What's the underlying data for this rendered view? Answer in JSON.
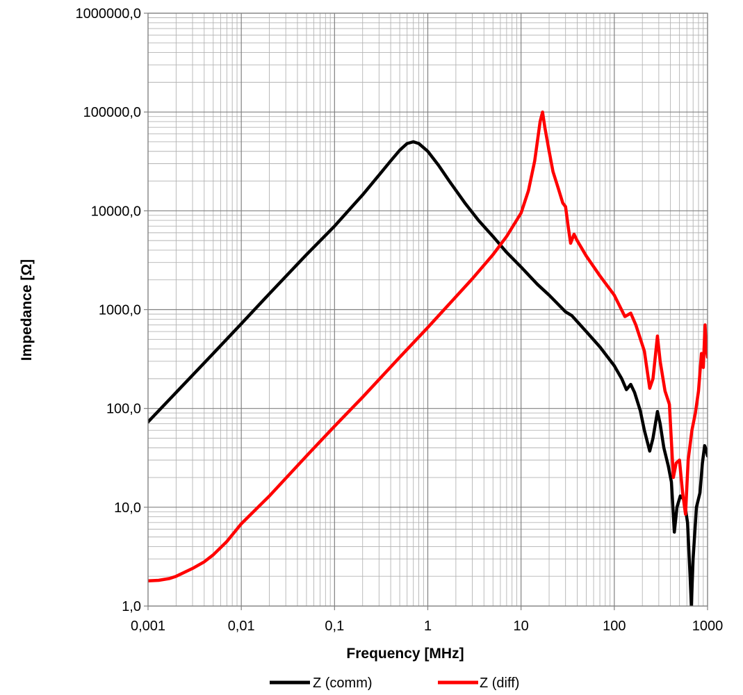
{
  "chart_data": {
    "type": "line",
    "xlabel": "Frequency  [MHz]",
    "ylabel": "Impedance [Ω]",
    "xscale": "log",
    "yscale": "log",
    "xlim": [
      0.001,
      1000
    ],
    "ylim": [
      1,
      1000000
    ],
    "grid": true,
    "legend_position": "bottom",
    "x_tick_labels": [
      "0,001",
      "0,01",
      "0,1",
      "1",
      "10",
      "100",
      "1000"
    ],
    "y_tick_labels": [
      "1,0",
      "10,0",
      "100,0",
      "1000,0",
      "10000,0",
      "100000,0",
      "1000000,0"
    ],
    "series": [
      {
        "name": "Z  (comm)",
        "color": "#000000",
        "points": [
          [
            0.001,
            73
          ],
          [
            0.002,
            145
          ],
          [
            0.005,
            360
          ],
          [
            0.01,
            720
          ],
          [
            0.02,
            1450
          ],
          [
            0.05,
            3600
          ],
          [
            0.1,
            7000
          ],
          [
            0.2,
            14500
          ],
          [
            0.3,
            23000
          ],
          [
            0.4,
            32000
          ],
          [
            0.5,
            41000
          ],
          [
            0.6,
            48000
          ],
          [
            0.7,
            50000
          ],
          [
            0.8,
            48000
          ],
          [
            1.0,
            40000
          ],
          [
            1.3,
            29000
          ],
          [
            1.7,
            20000
          ],
          [
            2.5,
            12000
          ],
          [
            3.5,
            8000
          ],
          [
            5,
            5500
          ],
          [
            7,
            3800
          ],
          [
            10,
            2700
          ],
          [
            15,
            1800
          ],
          [
            20,
            1400
          ],
          [
            30,
            950
          ],
          [
            35,
            870
          ],
          [
            50,
            600
          ],
          [
            70,
            420
          ],
          [
            100,
            270
          ],
          [
            120,
            200
          ],
          [
            135,
            155
          ],
          [
            150,
            175
          ],
          [
            165,
            145
          ],
          [
            190,
            95
          ],
          [
            210,
            60
          ],
          [
            240,
            37
          ],
          [
            260,
            50
          ],
          [
            290,
            93
          ],
          [
            310,
            70
          ],
          [
            340,
            40
          ],
          [
            380,
            26
          ],
          [
            410,
            18
          ],
          [
            440,
            5.6
          ],
          [
            470,
            10
          ],
          [
            510,
            13
          ],
          [
            560,
            12
          ],
          [
            610,
            7
          ],
          [
            650,
            2
          ],
          [
            670,
            1
          ],
          [
            700,
            3
          ],
          [
            760,
            10
          ],
          [
            830,
            14
          ],
          [
            880,
            28
          ],
          [
            930,
            42
          ],
          [
            970,
            38
          ],
          [
            1000,
            33
          ]
        ]
      },
      {
        "name": "Z (diff)",
        "color": "#ff0000",
        "points": [
          [
            0.001,
            1.8
          ],
          [
            0.0013,
            1.82
          ],
          [
            0.0017,
            1.9
          ],
          [
            0.002,
            2.0
          ],
          [
            0.003,
            2.4
          ],
          [
            0.004,
            2.8
          ],
          [
            0.005,
            3.3
          ],
          [
            0.007,
            4.5
          ],
          [
            0.01,
            6.8
          ],
          [
            0.02,
            13
          ],
          [
            0.05,
            33
          ],
          [
            0.1,
            66
          ],
          [
            0.2,
            130
          ],
          [
            0.5,
            330
          ],
          [
            1,
            660
          ],
          [
            2,
            1350
          ],
          [
            3,
            2050
          ],
          [
            5,
            3600
          ],
          [
            7,
            5500
          ],
          [
            10,
            9500
          ],
          [
            12,
            16000
          ],
          [
            14,
            32000
          ],
          [
            16,
            80000
          ],
          [
            17,
            100000
          ],
          [
            18,
            70000
          ],
          [
            20,
            40000
          ],
          [
            22,
            25000
          ],
          [
            25,
            17000
          ],
          [
            28,
            12000
          ],
          [
            30,
            11000
          ],
          [
            32,
            7000
          ],
          [
            34,
            4700
          ],
          [
            37,
            5800
          ],
          [
            40,
            5000
          ],
          [
            50,
            3500
          ],
          [
            70,
            2200
          ],
          [
            100,
            1400
          ],
          [
            130,
            850
          ],
          [
            150,
            920
          ],
          [
            170,
            700
          ],
          [
            210,
            380
          ],
          [
            240,
            160
          ],
          [
            260,
            200
          ],
          [
            290,
            540
          ],
          [
            310,
            300
          ],
          [
            350,
            150
          ],
          [
            390,
            110
          ],
          [
            430,
            20
          ],
          [
            460,
            28
          ],
          [
            500,
            30
          ],
          [
            540,
            14
          ],
          [
            580,
            8.5
          ],
          [
            620,
            30
          ],
          [
            680,
            60
          ],
          [
            740,
            90
          ],
          [
            800,
            150
          ],
          [
            860,
            360
          ],
          [
            900,
            260
          ],
          [
            940,
            700
          ],
          [
            970,
            400
          ],
          [
            1000,
            330
          ]
        ]
      }
    ]
  }
}
